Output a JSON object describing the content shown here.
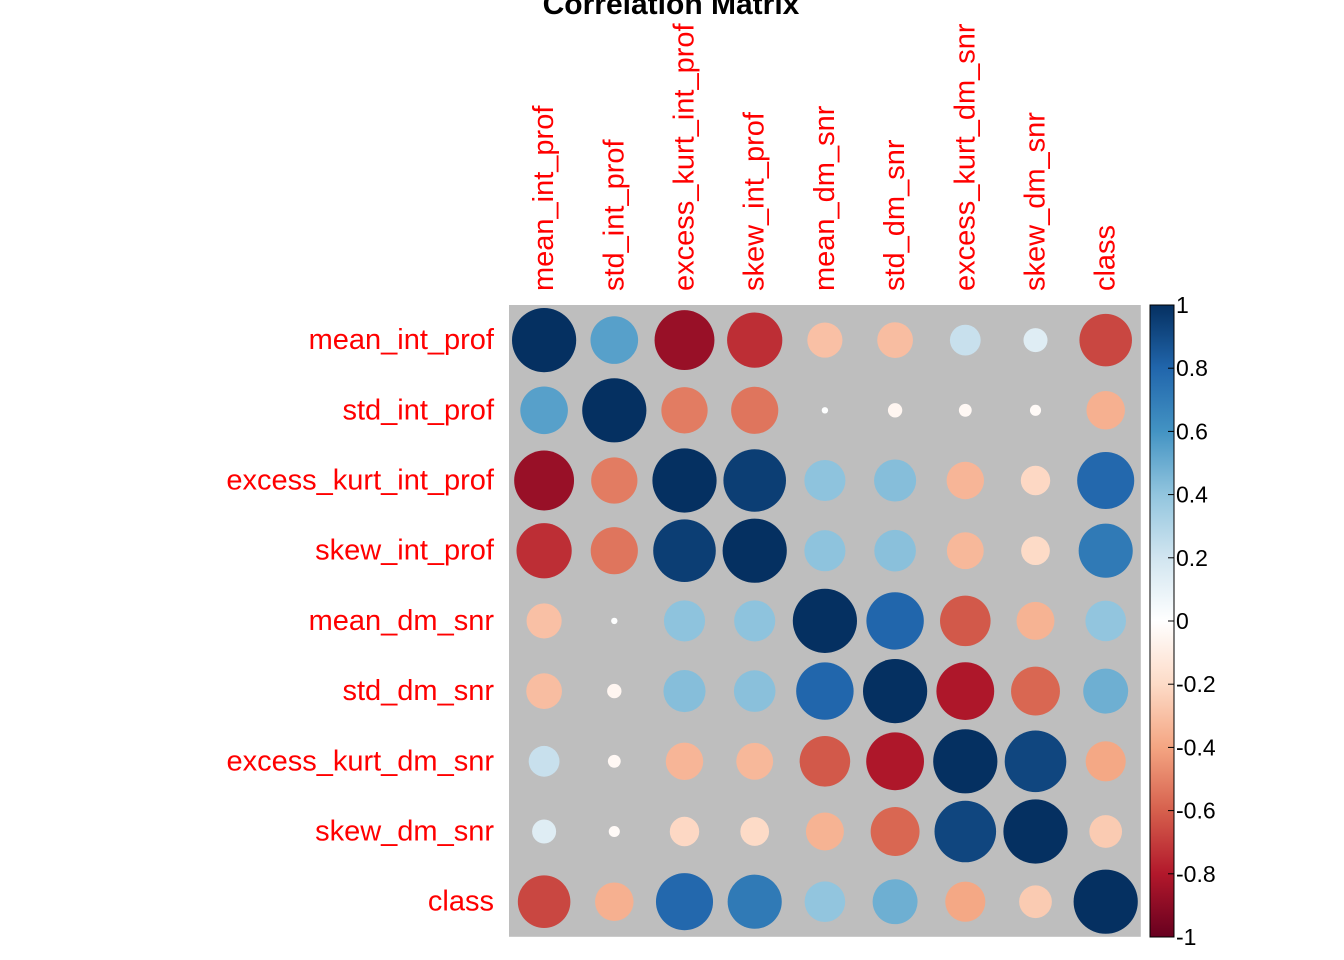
{
  "chart_data": {
    "type": "heatmap",
    "title": "Correlation Matrix",
    "variables": [
      "mean_int_prof",
      "std_int_prof",
      "excess_kurt_int_prof",
      "skew_int_prof",
      "mean_dm_snr",
      "std_dm_snr",
      "excess_kurt_dm_snr",
      "skew_dm_snr",
      "class"
    ],
    "matrix": [
      [
        1.0,
        0.55,
        -0.87,
        -0.74,
        -0.3,
        -0.31,
        0.23,
        0.14,
        -0.67
      ],
      [
        0.55,
        1.0,
        -0.52,
        -0.54,
        0.01,
        -0.05,
        -0.04,
        -0.03,
        -0.36
      ],
      [
        -0.87,
        -0.52,
        1.0,
        0.95,
        0.41,
        0.43,
        -0.34,
        -0.21,
        0.79
      ],
      [
        -0.74,
        -0.54,
        0.95,
        1.0,
        0.41,
        0.42,
        -0.33,
        -0.2,
        0.71
      ],
      [
        -0.3,
        0.01,
        0.41,
        0.41,
        1.0,
        0.8,
        -0.62,
        -0.35,
        0.4
      ],
      [
        -0.31,
        -0.05,
        0.43,
        0.42,
        0.8,
        1.0,
        -0.81,
        -0.58,
        0.49
      ],
      [
        0.23,
        -0.04,
        -0.34,
        -0.33,
        -0.62,
        -0.81,
        1.0,
        0.92,
        -0.39
      ],
      [
        0.14,
        -0.03,
        -0.21,
        -0.2,
        -0.35,
        -0.58,
        0.92,
        1.0,
        -0.26
      ],
      [
        -0.67,
        -0.36,
        0.79,
        0.71,
        0.4,
        0.49,
        -0.39,
        -0.26,
        1.0
      ]
    ],
    "legend": {
      "position": "right",
      "ticks": [
        "1",
        "0.8",
        "0.6",
        "0.4",
        "0.2",
        "0",
        "-0.2",
        "-0.4",
        "-0.6",
        "-0.8",
        "-1"
      ],
      "range": [
        -1,
        1
      ]
    },
    "label_color": "#FF0000",
    "background_color": "#BEBEBE",
    "color_scale": [
      "#67001F",
      "#B2182B",
      "#D6604D",
      "#F4A582",
      "#FDDBC7",
      "#FFFFFF",
      "#D1E5F0",
      "#92C5DE",
      "#4393C3",
      "#2166AC",
      "#053061"
    ]
  }
}
